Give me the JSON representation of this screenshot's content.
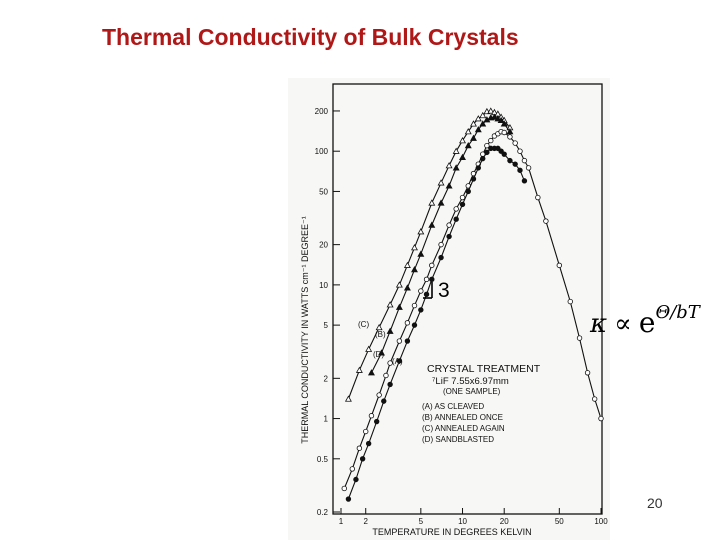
{
  "slide": {
    "title": "Thermal Conductivity of Bulk Crystals",
    "page_number": "20",
    "slope_label": "3",
    "formula": {
      "symbol": "κ",
      "relation": "∝",
      "base": "e",
      "exponent": "Θ/bT"
    },
    "title_color": "#b01818"
  },
  "chart_data": {
    "type": "scatter",
    "title": "",
    "xlabel": "TEMPERATURE IN DEGREES KELVIN",
    "ylabel": "THERMAL CONDUCTIVITY IN WATTS cm⁻¹ DEGREE⁻¹",
    "x_scale": "log",
    "y_scale": "log",
    "xlim": [
      1.2,
      100
    ],
    "ylim": [
      0.2,
      250
    ],
    "x_ticks": [
      {
        "value": 1,
        "label": "1"
      },
      {
        "value": 2,
        "label": "2"
      },
      {
        "value": 5,
        "label": "5"
      },
      {
        "value": 10,
        "label": "10"
      },
      {
        "value": 20,
        "label": "20"
      },
      {
        "value": 50,
        "label": "50"
      },
      {
        "value": 100,
        "label": "100"
      }
    ],
    "y_ticks": [
      {
        "value": 0.2,
        "label": "0.2"
      },
      {
        "value": 0.5,
        "label": "0.5"
      },
      {
        "value": 1,
        "label": "1"
      },
      {
        "value": 2,
        "label": "2"
      },
      {
        "value": 5,
        "label": "5"
      },
      {
        "value": 10,
        "label": "10"
      },
      {
        "value": 20,
        "label": "20"
      },
      {
        "value": 50,
        "label": "50"
      },
      {
        "value": 100,
        "label": "100"
      },
      {
        "value": 200,
        "label": "200"
      }
    ],
    "legend": {
      "title": "CRYSTAL TREATMENT",
      "lines": [
        "⁷LiF 7.55x6.97mm",
        "(ONE SAMPLE)"
      ],
      "entries": [
        "(A)  AS CLEAVED",
        "(B)  ANNEALED ONCE",
        "(C)  ANNEALED AGAIN",
        "(D)  SANDBLASTED"
      ],
      "placement": "lower-center"
    },
    "series": [
      {
        "name": "(C)",
        "marker": "open-triangle",
        "x": [
          1.5,
          1.8,
          2.1,
          2.5,
          3,
          3.5,
          4,
          4.5,
          5,
          6,
          7,
          8,
          9,
          10,
          11,
          12,
          13,
          14,
          15,
          16,
          17,
          18,
          19,
          20,
          22
        ],
        "y": [
          1.4,
          2.3,
          3.3,
          4.8,
          7.1,
          10,
          14,
          19,
          25,
          41,
          58,
          78,
          100,
          120,
          140,
          160,
          175,
          185,
          198,
          200,
          195,
          190,
          180,
          170,
          150
        ]
      },
      {
        "name": "(B)",
        "marker": "filled-triangle",
        "x": [
          2.2,
          2.6,
          3,
          3.5,
          4,
          4.5,
          5,
          6,
          7,
          8,
          9,
          10,
          11,
          12,
          13,
          14,
          15,
          16,
          17,
          18,
          19,
          20,
          22
        ],
        "y": [
          2.2,
          3.1,
          4.5,
          6.8,
          9.5,
          13,
          17,
          28,
          41,
          55,
          75,
          90,
          110,
          125,
          145,
          160,
          172,
          178,
          180,
          175,
          170,
          160,
          140
        ]
      },
      {
        "name": "(D)",
        "marker": "open-circle",
        "x": [
          1.4,
          1.6,
          1.8,
          2,
          2.2,
          2.5,
          2.8,
          3,
          3.5,
          4,
          4.5,
          5,
          5.5,
          6,
          7,
          8,
          9,
          10,
          11,
          12,
          13,
          14,
          15,
          16,
          17,
          18,
          19,
          20,
          22,
          24,
          26,
          28,
          30,
          35,
          40,
          50,
          60,
          70,
          80,
          90,
          100
        ],
        "y": [
          0.3,
          0.42,
          0.6,
          0.8,
          1.05,
          1.5,
          2.1,
          2.6,
          3.8,
          5.2,
          7,
          9,
          11,
          14,
          20,
          28,
          37,
          45,
          55,
          68,
          80,
          95,
          110,
          120,
          130,
          135,
          140,
          138,
          128,
          115,
          100,
          85,
          75,
          45,
          30,
          14,
          7.5,
          4,
          2.2,
          1.4,
          1
        ]
      },
      {
        "name": "(A)",
        "marker": "filled-circle",
        "x": [
          1.5,
          1.7,
          1.9,
          2.1,
          2.4,
          2.7,
          3,
          3.5,
          4,
          4.5,
          5,
          5.5,
          6,
          7,
          8,
          9,
          10,
          11,
          12,
          13,
          14,
          15,
          16,
          17,
          18,
          19,
          20,
          22,
          24,
          26,
          28
        ],
        "y": [
          0.25,
          0.35,
          0.5,
          0.65,
          0.95,
          1.35,
          1.8,
          2.7,
          3.8,
          5,
          6.5,
          8.5,
          11,
          16,
          23,
          31,
          40,
          50,
          62,
          75,
          88,
          98,
          105,
          105,
          105,
          100,
          95,
          85,
          80,
          72,
          60
        ]
      }
    ],
    "curve_labels": [
      {
        "series": "(C)",
        "text": "(C)"
      },
      {
        "series": "(B)",
        "text": "(B)"
      },
      {
        "series": "(D)",
        "text": "(D)"
      },
      {
        "series": "(A)",
        "text": "(A)"
      }
    ]
  }
}
